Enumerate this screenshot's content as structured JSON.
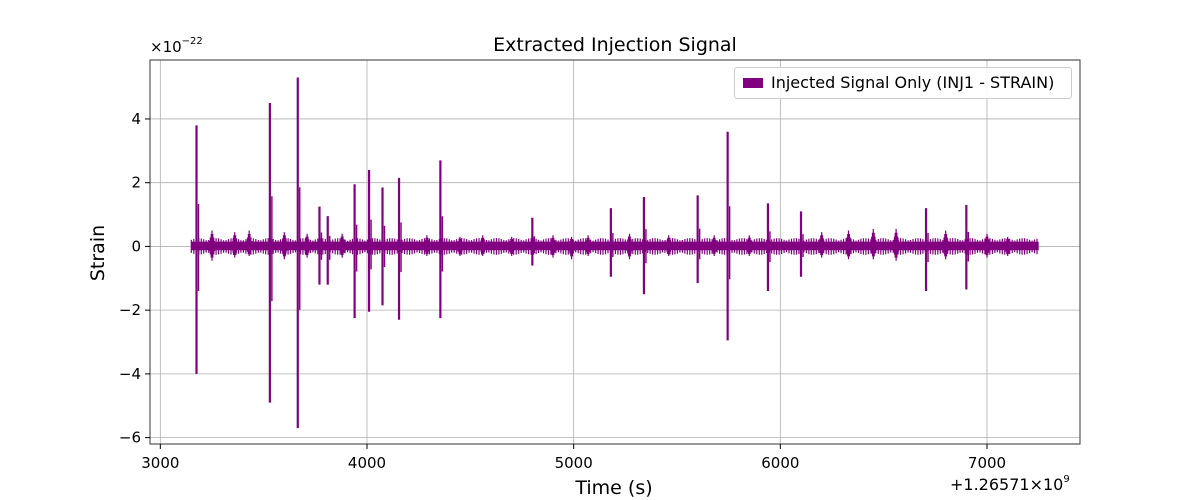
{
  "chart_data": {
    "type": "line",
    "title": "Extracted Injection Signal",
    "xlabel": "Time (s)",
    "ylabel": "Strain",
    "x_offset_label": "+1.26571×10",
    "x_offset_exponent": "9",
    "y_multiplier_label": "×10",
    "y_multiplier_exponent": "−22",
    "xlim": [
      2950,
      7450
    ],
    "ylim": [
      -6.2,
      5.85
    ],
    "x_ticks": [
      3000,
      4000,
      5000,
      6000,
      7000
    ],
    "x_tick_labels": [
      "3000",
      "4000",
      "5000",
      "6000",
      "7000"
    ],
    "y_ticks": [
      -6,
      -4,
      -2,
      0,
      2,
      4
    ],
    "y_tick_labels": [
      "−6",
      "−4",
      "−2",
      "0",
      "2",
      "4"
    ],
    "grid": true,
    "legend_position": "top-right",
    "series": [
      {
        "name": "Injected Signal Only (INJ1 - STRAIN)",
        "color": "#800080",
        "x_range": [
          3150,
          7250
        ],
        "baseline_band": [
          -0.12,
          0.15
        ],
        "spikes": [
          {
            "x": 3175,
            "max": 3.8,
            "min": -4.0
          },
          {
            "x": 3530,
            "max": 4.5,
            "min": -4.9
          },
          {
            "x": 3665,
            "max": 5.3,
            "min": -5.7
          },
          {
            "x": 3770,
            "max": 1.25,
            "min": -1.2
          },
          {
            "x": 3810,
            "max": 0.95,
            "min": -1.2
          },
          {
            "x": 3940,
            "max": 1.95,
            "min": -2.25
          },
          {
            "x": 4010,
            "max": 2.4,
            "min": -2.05
          },
          {
            "x": 4075,
            "max": 1.85,
            "min": -1.85
          },
          {
            "x": 4155,
            "max": 2.15,
            "min": -2.3
          },
          {
            "x": 4355,
            "max": 2.7,
            "min": -2.25
          },
          {
            "x": 4800,
            "max": 0.9,
            "min": -0.6
          },
          {
            "x": 5180,
            "max": 1.2,
            "min": -0.95
          },
          {
            "x": 5340,
            "max": 1.55,
            "min": -1.5
          },
          {
            "x": 5600,
            "max": 1.6,
            "min": -1.15
          },
          {
            "x": 5745,
            "max": 3.6,
            "min": -2.95
          },
          {
            "x": 5940,
            "max": 1.35,
            "min": -1.4
          },
          {
            "x": 6100,
            "max": 1.1,
            "min": -0.95
          },
          {
            "x": 6705,
            "max": 1.2,
            "min": -1.4
          },
          {
            "x": 6900,
            "max": 1.3,
            "min": -1.35
          }
        ],
        "bursts": [
          {
            "x": 3250,
            "max": 0.5,
            "min": -0.45
          },
          {
            "x": 3360,
            "max": 0.45,
            "min": -0.35
          },
          {
            "x": 3430,
            "max": 0.5,
            "min": -0.3
          },
          {
            "x": 3600,
            "max": 0.45,
            "min": -0.4
          },
          {
            "x": 3710,
            "max": 0.4,
            "min": -0.35
          },
          {
            "x": 3880,
            "max": 0.4,
            "min": -0.35
          },
          {
            "x": 4290,
            "max": 0.35,
            "min": -0.3
          },
          {
            "x": 4450,
            "max": 0.3,
            "min": -0.3
          },
          {
            "x": 4560,
            "max": 0.35,
            "min": -0.3
          },
          {
            "x": 4700,
            "max": 0.3,
            "min": -0.3
          },
          {
            "x": 4900,
            "max": 0.35,
            "min": -0.35
          },
          {
            "x": 4990,
            "max": 0.3,
            "min": -0.4
          },
          {
            "x": 5070,
            "max": 0.35,
            "min": -0.3
          },
          {
            "x": 5270,
            "max": 0.4,
            "min": -0.4
          },
          {
            "x": 5460,
            "max": 0.35,
            "min": -0.3
          },
          {
            "x": 5680,
            "max": 0.35,
            "min": -0.3
          },
          {
            "x": 5850,
            "max": 0.35,
            "min": -0.3
          },
          {
            "x": 6200,
            "max": 0.45,
            "min": -0.35
          },
          {
            "x": 6330,
            "max": 0.5,
            "min": -0.4
          },
          {
            "x": 6450,
            "max": 0.55,
            "min": -0.4
          },
          {
            "x": 6560,
            "max": 0.55,
            "min": -0.45
          },
          {
            "x": 6800,
            "max": 0.5,
            "min": -0.4
          },
          {
            "x": 7000,
            "max": 0.4,
            "min": -0.35
          },
          {
            "x": 7100,
            "max": 0.3,
            "min": -0.3
          }
        ]
      }
    ]
  }
}
